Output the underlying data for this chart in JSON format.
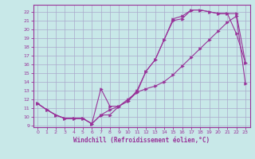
{
  "title": "",
  "xlabel": "Windchill (Refroidissement éolien,°C)",
  "background_color": "#c8e8e8",
  "grid_color": "#aaaacc",
  "line_color": "#993399",
  "xlim": [
    -0.5,
    23.5
  ],
  "ylim": [
    8.8,
    22.8
  ],
  "xticks": [
    0,
    1,
    2,
    3,
    4,
    5,
    6,
    7,
    8,
    9,
    10,
    11,
    12,
    13,
    14,
    15,
    16,
    17,
    18,
    19,
    20,
    21,
    22,
    23
  ],
  "yticks": [
    9,
    10,
    11,
    12,
    13,
    14,
    15,
    16,
    17,
    18,
    19,
    20,
    21,
    22
  ],
  "line1_x": [
    0,
    1,
    2,
    3,
    4,
    5,
    6,
    7,
    8,
    9,
    10,
    11,
    12,
    13,
    14,
    15,
    16,
    17,
    18,
    19,
    20,
    21,
    22,
    23
  ],
  "line1_y": [
    11.5,
    10.8,
    10.2,
    9.8,
    9.8,
    9.8,
    9.2,
    10.2,
    10.2,
    11.2,
    12.0,
    12.8,
    13.2,
    13.5,
    14.0,
    14.8,
    15.8,
    16.8,
    17.8,
    18.8,
    19.8,
    20.8,
    21.5,
    13.8
  ],
  "line2_x": [
    0,
    1,
    2,
    3,
    4,
    5,
    6,
    7,
    8,
    9,
    10,
    11,
    12,
    13,
    14,
    15,
    16,
    17,
    18,
    19,
    20,
    21,
    22,
    23
  ],
  "line2_y": [
    11.5,
    10.8,
    10.2,
    9.8,
    9.8,
    9.8,
    9.2,
    13.2,
    11.2,
    11.2,
    11.8,
    13.0,
    15.2,
    16.5,
    18.8,
    21.2,
    21.5,
    22.2,
    22.2,
    22.0,
    21.8,
    21.8,
    21.8,
    16.2
  ],
  "line3_x": [
    0,
    1,
    2,
    3,
    4,
    5,
    6,
    7,
    8,
    9,
    10,
    11,
    12,
    13,
    14,
    15,
    16,
    17,
    18,
    19,
    20,
    21,
    22,
    23
  ],
  "line3_y": [
    11.5,
    10.8,
    10.2,
    9.8,
    9.8,
    9.8,
    9.2,
    10.2,
    10.8,
    11.2,
    11.8,
    12.8,
    15.2,
    16.5,
    18.8,
    21.0,
    21.2,
    22.2,
    22.2,
    22.0,
    21.8,
    21.8,
    19.5,
    16.2
  ]
}
